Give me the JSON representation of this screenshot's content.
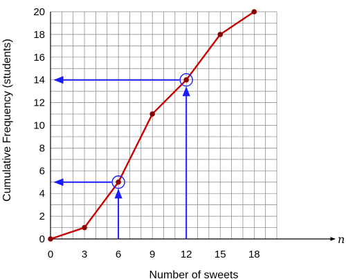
{
  "chart_data": {
    "type": "line",
    "xlabel": "Number of sweets",
    "ylabel": "Cumulative Frequency (students)",
    "x_axis_variable": "n",
    "xlim": [
      0,
      20
    ],
    "ylim": [
      0,
      20
    ],
    "x_ticks": [
      0,
      3,
      6,
      9,
      12,
      15,
      18
    ],
    "y_ticks": [
      0,
      2,
      4,
      6,
      8,
      10,
      12,
      14,
      16,
      18,
      20
    ],
    "grid": true,
    "series": [
      {
        "x": [
          0,
          3,
          6,
          9,
          12,
          15,
          18
        ],
        "y": [
          0,
          1,
          5,
          11,
          14,
          18,
          20
        ]
      }
    ],
    "annotations": [
      {
        "x": 6,
        "y": 5
      },
      {
        "x": 12,
        "y": 14
      }
    ],
    "colors": {
      "series": "#cc0000",
      "marker": "#8b0000",
      "annotation": "#1a1aff",
      "grid": "#808080"
    }
  }
}
